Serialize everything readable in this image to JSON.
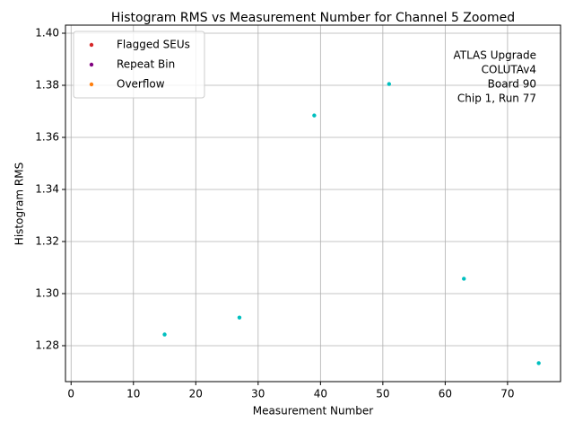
{
  "chart_data": {
    "type": "scatter",
    "title": "Histogram RMS vs Measurement Number for Channel 5 Zoomed",
    "x_label": "Measurement Number",
    "y_label": "Histogram RMS",
    "x": [
      15,
      27,
      39,
      51,
      63,
      75
    ],
    "values": [
      1.2843,
      1.2908,
      1.3684,
      1.3805,
      1.3057,
      1.2733
    ],
    "color": "#00bfbf",
    "xlim": [
      -0.9,
      78.5
    ],
    "xticks": [
      0,
      10,
      20,
      30,
      40,
      50,
      60,
      70
    ],
    "ylim": [
      1.2662,
      1.4031
    ],
    "yticks": [
      1.28,
      {
        "value": 1.3,
        "label": "1.30"
      },
      1.32,
      1.34,
      1.36,
      1.38,
      {
        "value": 1.4,
        "label": "1.40"
      }
    ],
    "grid": true,
    "legend_position": "upper left",
    "legend": [
      {
        "name": "Flagged SEUs",
        "color": "#d62728"
      },
      {
        "name": "Repeat Bin",
        "color": "#800080"
      },
      {
        "name": "Overflow",
        "color": "#ff7f0e"
      }
    ],
    "annotation": [
      "ATLAS Upgrade",
      "COLUTAv4",
      "Board 90",
      "Chip 1, Run 77"
    ]
  }
}
